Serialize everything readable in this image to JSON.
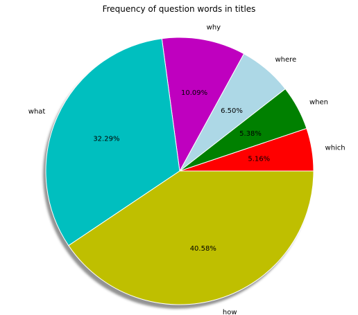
{
  "chart_data": {
    "type": "pie",
    "title": "Frequency of question words in titles",
    "shadow": true,
    "start_angle_deg": 0,
    "direction": "counterclockwise",
    "slices": [
      {
        "label": "which",
        "percent": 5.16,
        "pct_text": "5.16%",
        "color": "#ff0000"
      },
      {
        "label": "when",
        "percent": 5.38,
        "pct_text": "5.38%",
        "color": "#008000"
      },
      {
        "label": "where",
        "percent": 6.5,
        "pct_text": "6.50%",
        "color": "#add8e6"
      },
      {
        "label": "why",
        "percent": 10.09,
        "pct_text": "10.09%",
        "color": "#bf00bf"
      },
      {
        "label": "what",
        "percent": 32.29,
        "pct_text": "32.29%",
        "color": "#00bfbf"
      },
      {
        "label": "how",
        "percent": 40.58,
        "pct_text": "40.58%",
        "color": "#bfbf00"
      }
    ]
  }
}
